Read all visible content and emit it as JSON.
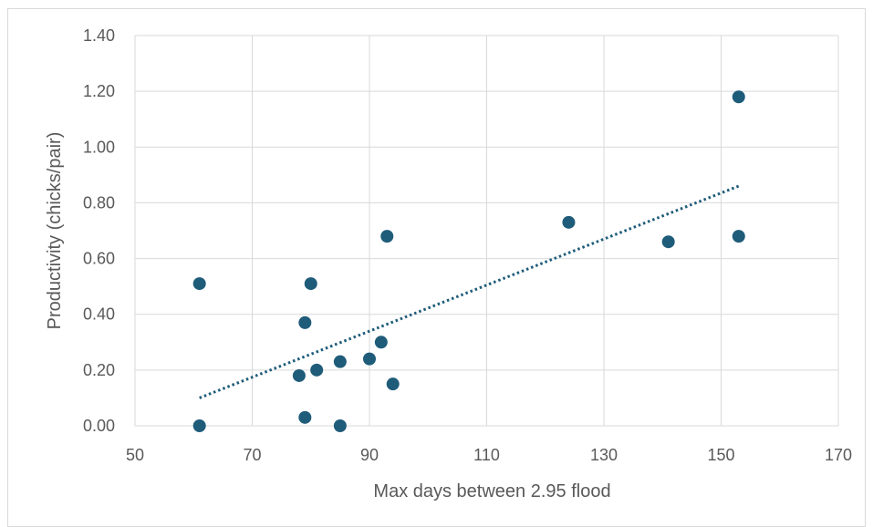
{
  "chart_data": {
    "type": "scatter",
    "title": "",
    "xlabel": "Max days between 2.95 flood",
    "ylabel": "Productivity (chicks/pair)",
    "xlim": [
      50,
      170
    ],
    "ylim": [
      0,
      1.4
    ],
    "xticks": [
      50,
      70,
      90,
      110,
      130,
      150,
      170
    ],
    "xtick_labels": [
      "50",
      "70",
      "90",
      "110",
      "130",
      "150",
      "170"
    ],
    "yticks": [
      0,
      0.2,
      0.4,
      0.6,
      0.8,
      1.0,
      1.2,
      1.4
    ],
    "ytick_labels": [
      "0.00",
      "0.20",
      "0.40",
      "0.60",
      "0.80",
      "1.00",
      "1.20",
      "1.40"
    ],
    "grid": true,
    "legend": "none",
    "series": [
      {
        "x": [
          61,
          61,
          78,
          79,
          79,
          80,
          81,
          85,
          85,
          90,
          92,
          93,
          94,
          124,
          141,
          153,
          153
        ],
        "y": [
          0.51,
          0.0,
          0.18,
          0.37,
          0.03,
          0.51,
          0.2,
          0.23,
          0.0,
          0.24,
          0.3,
          0.68,
          0.15,
          0.73,
          0.66,
          1.18,
          0.68
        ],
        "color": "#1f5c7a"
      }
    ],
    "trendline": {
      "type": "linear",
      "x_range": [
        61,
        153
      ],
      "y_range": [
        0.1,
        0.86
      ],
      "color": "#1f5c7a",
      "style": "dotted"
    }
  }
}
